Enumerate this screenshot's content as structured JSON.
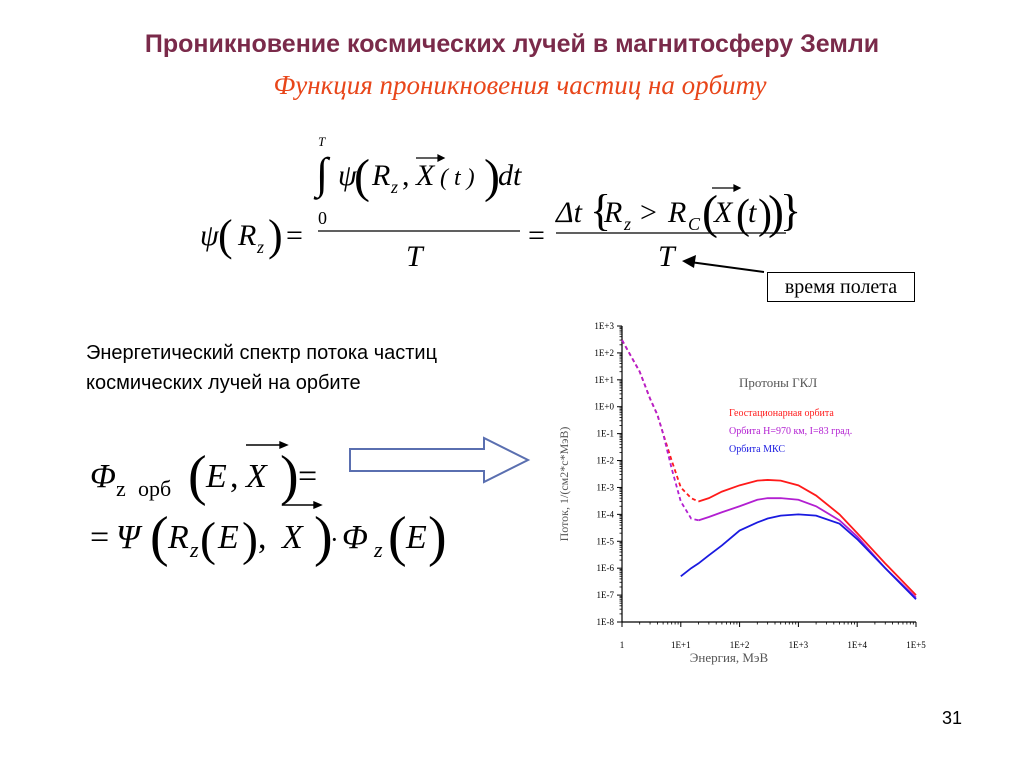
{
  "slide": {
    "title": "Проникновение космических лучей в магнитосферу Земли",
    "subtitle": "Функция проникновения частиц на орбиту",
    "time_label": "время полета",
    "spectrum_text": "Энергетический спектр потока частиц космических лучей на орбите",
    "page_number": "31"
  },
  "formula1": {
    "psi": "ψ",
    "Rz_R": "R",
    "Rz_sub": "z",
    "eq": "=",
    "int_upper": "T",
    "int_lower": "0",
    "int_sign": "∫",
    "integrand_psi": "ψ",
    "integrand_R": "R",
    "integrand_sub": "z",
    "comma": ",",
    "X": "X",
    "t_paren": "( t )",
    "dt": "dt",
    "denom_T": "T",
    "delta_t": "Δt",
    "gt": ">",
    "Rc_R": "R",
    "Rc_sub": "C",
    "t": "t"
  },
  "formula2": {
    "Phi": "Φ",
    "sub_z": "z",
    "sub_orb": "орб",
    "E": "E",
    "X": "X",
    "comma": ",",
    "eq": "=",
    "Psi": "Ψ",
    "R": "R",
    "dot": "·",
    "Phi2": "Φ"
  },
  "chart_data": {
    "type": "line",
    "title": "Протоны ГКЛ",
    "xlabel": "Энергия, МэВ",
    "ylabel": "Поток, 1/(см2*с*МэВ)",
    "x_scale": "log",
    "y_scale": "log",
    "xlim": [
      1,
      100000
    ],
    "ylim": [
      1e-08,
      1000
    ],
    "x_ticks": [
      "1",
      "1E+1",
      "1E+2",
      "1E+3",
      "1E+4",
      "1E+5"
    ],
    "y_ticks": [
      "1E+3",
      "1E+2",
      "1E+1",
      "1E+0",
      "1E-1",
      "1E-2",
      "1E-3",
      "1E-4",
      "1E-5",
      "1E-6",
      "1E-7",
      "1E-8"
    ],
    "series": [
      {
        "name": "Геостационарная орбита",
        "color": "#ff1a1a",
        "dash_until": 20,
        "x": [
          1,
          2,
          3,
          4,
          5,
          7,
          10,
          15,
          20,
          30,
          50,
          100,
          200,
          300,
          500,
          1000,
          2000,
          5000,
          10000,
          30000,
          100000
        ],
        "y": [
          300,
          20,
          2,
          0.5,
          0.1,
          0.01,
          0.001,
          0.0004,
          0.0003,
          0.0004,
          0.0007,
          0.0012,
          0.0018,
          0.0019,
          0.0018,
          0.0012,
          0.0005,
          0.0001,
          2e-05,
          1.5e-06,
          1e-07
        ]
      },
      {
        "name": "Орбита H=970 км, I=83 град.",
        "color": "#b21fd1",
        "dash_until": 20,
        "x": [
          1,
          2,
          3,
          4,
          5,
          7,
          10,
          15,
          20,
          30,
          50,
          100,
          200,
          300,
          500,
          1000,
          2000,
          5000,
          10000,
          30000,
          100000
        ],
        "y": [
          300,
          20,
          2,
          0.5,
          0.1,
          0.005,
          0.0003,
          7e-05,
          6e-05,
          8e-05,
          0.00012,
          0.0002,
          0.00035,
          0.0004,
          0.0004,
          0.00035,
          0.0002,
          6e-05,
          1.5e-05,
          1e-06,
          8e-08
        ]
      },
      {
        "name": "Орбита МКС",
        "color": "#1a1ae0",
        "dash_until": 0,
        "x": [
          10,
          15,
          20,
          30,
          50,
          100,
          200,
          300,
          500,
          1000,
          2000,
          5000,
          10000,
          30000,
          100000
        ],
        "y": [
          5e-07,
          1e-06,
          1.5e-06,
          3e-06,
          7e-06,
          2.5e-05,
          5e-05,
          7e-05,
          9e-05,
          0.0001,
          9e-05,
          4.5e-05,
          1.2e-05,
          1e-06,
          7e-08
        ]
      }
    ]
  }
}
